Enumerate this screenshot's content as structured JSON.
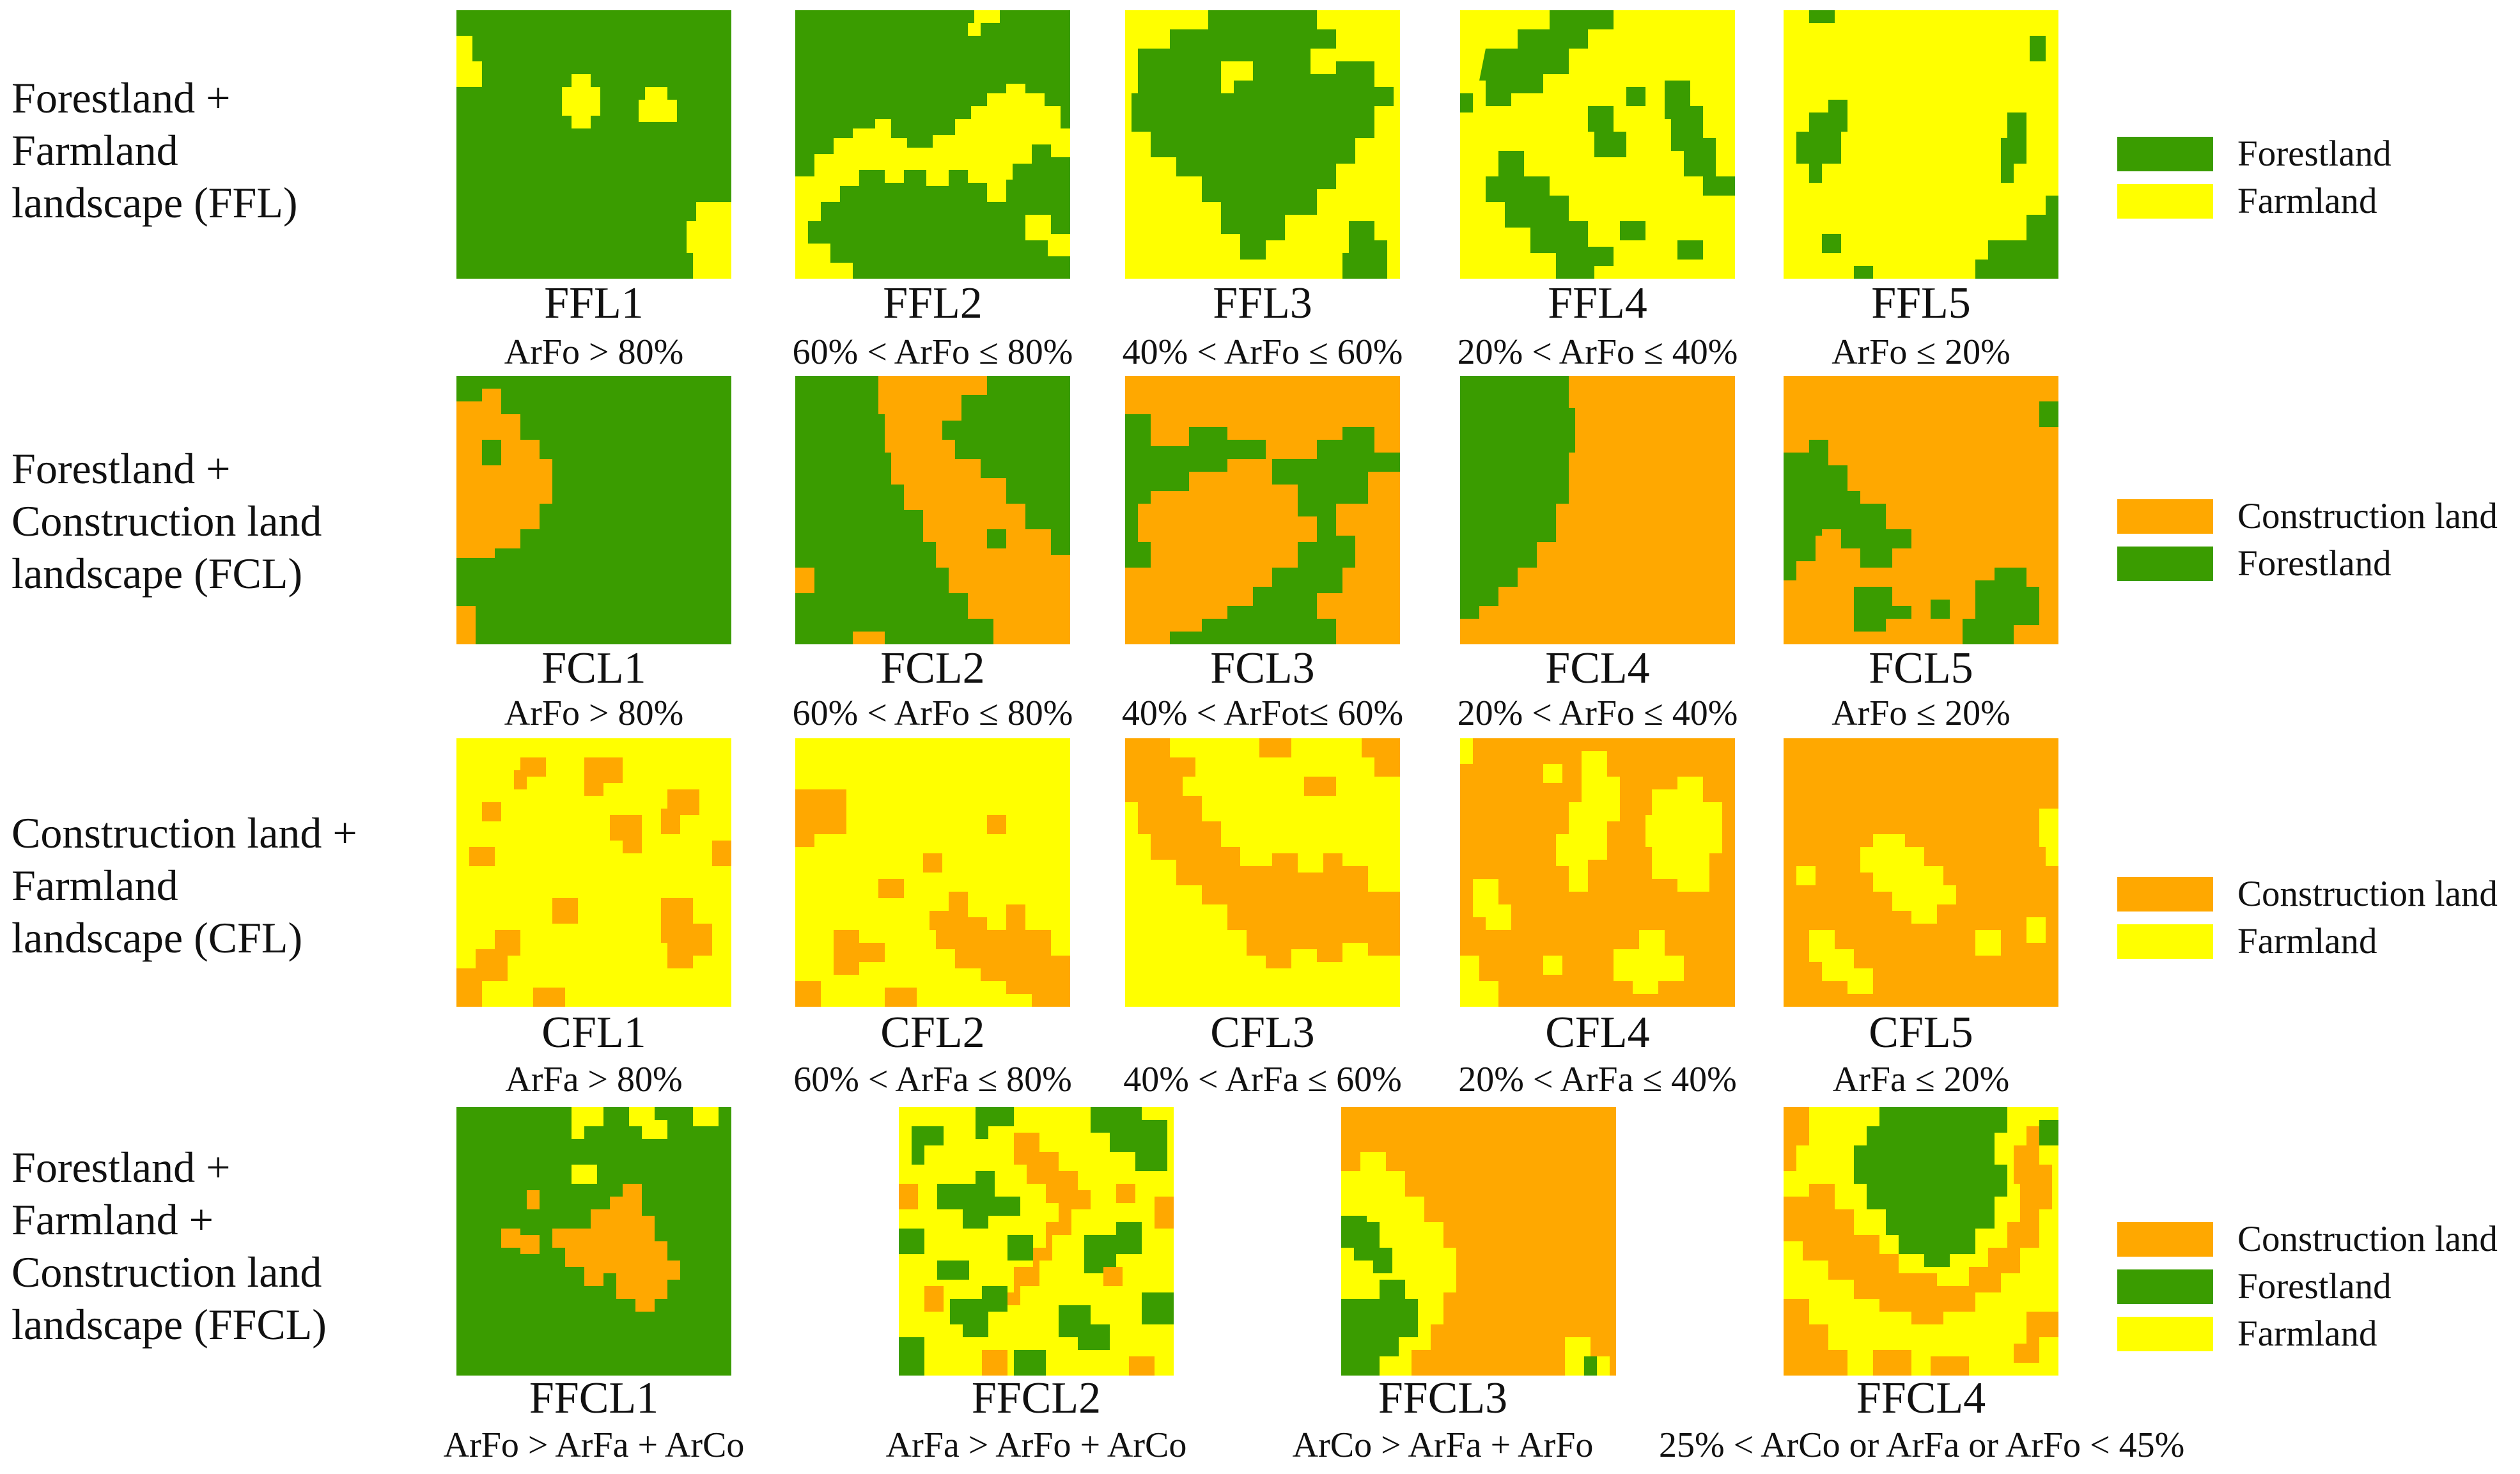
{
  "colors": {
    "forestland": "#3a9c00",
    "farmland": "#ffff00",
    "construction": "#ffa800"
  },
  "rows": [
    {
      "label_lines": [
        "Forestland +",
        "Farmland",
        "landscape (FFL)"
      ],
      "legend": [
        {
          "label": "Forestland",
          "color": "#3a9c00"
        },
        {
          "label": "Farmland",
          "color": "#ffff00"
        }
      ],
      "tiles": [
        {
          "title": "FFL1",
          "sub": "ArFo > 80%"
        },
        {
          "title": "FFL2",
          "sub": "60% < ArFo ≤ 80%"
        },
        {
          "title": "FFL3",
          "sub": "40% < ArFo ≤ 60%"
        },
        {
          "title": "FFL4",
          "sub": "20% < ArFo ≤ 40%"
        },
        {
          "title": "FFL5",
          "sub": "ArFo ≤ 20%"
        }
      ]
    },
    {
      "label_lines": [
        "Forestland +",
        "Construction land",
        "landscape (FCL)"
      ],
      "legend": [
        {
          "label": "Construction land",
          "color": "#ffa800"
        },
        {
          "label": "Forestland",
          "color": "#3a9c00"
        }
      ],
      "tiles": [
        {
          "title": "FCL1",
          "sub": "ArFo > 80%"
        },
        {
          "title": "FCL2",
          "sub": "60% < ArFo ≤ 80%"
        },
        {
          "title": "FCL3",
          "sub": "40% < ArFot≤ 60%"
        },
        {
          "title": "FCL4",
          "sub": "20% < ArFo ≤ 40%"
        },
        {
          "title": "FCL5",
          "sub": "ArFo ≤ 20%"
        }
      ]
    },
    {
      "label_lines": [
        "Construction land +",
        "Farmland",
        "landscape (CFL)"
      ],
      "legend": [
        {
          "label": "Construction land",
          "color": "#ffa800"
        },
        {
          "label": "Farmland",
          "color": "#ffff00"
        }
      ],
      "tiles": [
        {
          "title": "CFL1",
          "sub": "ArFa > 80%"
        },
        {
          "title": "CFL2",
          "sub": "60% < ArFa ≤ 80%"
        },
        {
          "title": "CFL3",
          "sub": "40% < ArFa ≤ 60%"
        },
        {
          "title": "CFL4",
          "sub": "20% < ArFa ≤ 40%"
        },
        {
          "title": "CFL5",
          "sub": "ArFa ≤ 20%"
        }
      ]
    },
    {
      "label_lines": [
        "Forestland +",
        "Farmland +",
        "Construction land",
        "landscape (FFCL)"
      ],
      "legend": [
        {
          "label": "Construction land",
          "color": "#ffa800"
        },
        {
          "label": "Forestland",
          "color": "#3a9c00"
        },
        {
          "label": "Farmland",
          "color": "#ffff00"
        }
      ],
      "tiles": [
        {
          "title": "FFCL1",
          "sub": "ArFo > ArFa + ArCo"
        },
        {
          "title": "FFCL2",
          "sub": "ArFa > ArFo + ArCo"
        },
        {
          "title": "FFCL3",
          "sub": "ArCo > ArFa + ArFo"
        },
        {
          "title": "FFCL4",
          "sub": "25% < ArCo or ArFa or ArFo < 45%"
        }
      ]
    }
  ]
}
